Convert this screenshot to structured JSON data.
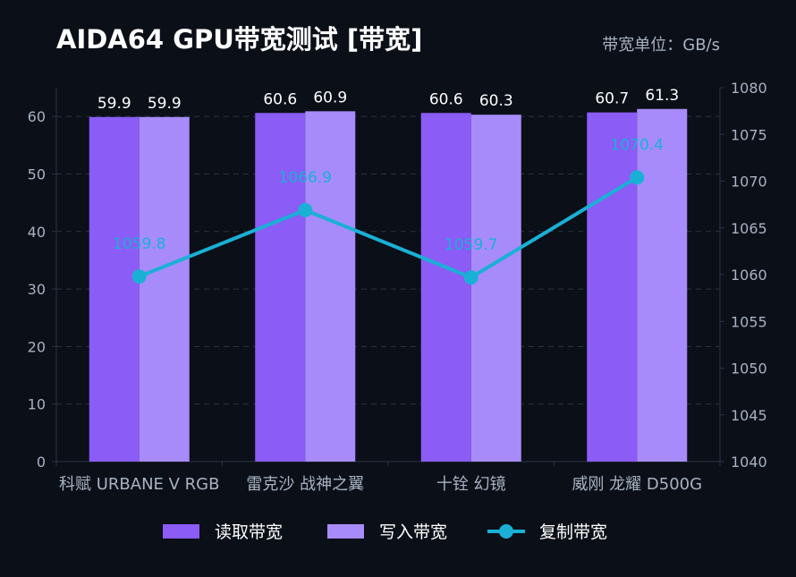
{
  "chart_data": {
    "type": "bar",
    "title": "AIDA64 GPU带宽测试 [带宽]",
    "unit_label": "带宽单位：GB/s",
    "categories": [
      "科赋 URBANE V RGB",
      "雷克沙 战神之翼",
      "十铨 幻镜",
      "威刚 龙耀 D500G"
    ],
    "series": [
      {
        "name": "读取带宽",
        "type": "bar",
        "axis": "left",
        "color": "#8b5cf6",
        "values": [
          59.9,
          60.6,
          60.6,
          60.7
        ]
      },
      {
        "name": "写入带宽",
        "type": "bar",
        "axis": "left",
        "color": "#a78bfa",
        "values": [
          59.9,
          60.9,
          60.3,
          61.3
        ]
      },
      {
        "name": "复制带宽",
        "type": "line",
        "axis": "right",
        "color": "#1ab0d6",
        "values": [
          1059.8,
          1066.9,
          1059.7,
          1070.4
        ]
      }
    ],
    "ylim_left": [
      0,
      65
    ],
    "yticks_left": [
      0,
      10,
      20,
      30,
      40,
      50,
      60
    ],
    "ylim_right": [
      1040,
      1080
    ],
    "yticks_right": [
      1040,
      1045,
      1050,
      1055,
      1060,
      1065,
      1070,
      1075,
      1080
    ],
    "grid": true,
    "legend_position": "bottom"
  },
  "colors": {
    "background": "#0b0f18",
    "title": "#ffffff",
    "axis_text": "#a7b3c2",
    "grid": "#2a3442",
    "bar_label": "#ffffff"
  }
}
